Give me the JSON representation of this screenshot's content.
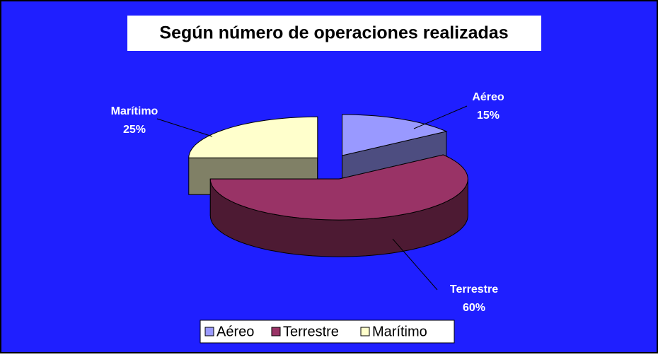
{
  "chart_data": {
    "type": "pie",
    "title": "Según número de operaciones realizadas",
    "categories": [
      "Aéreo",
      "Terrestre",
      "Marítimo"
    ],
    "values": [
      15,
      60,
      25
    ],
    "value_labels": [
      "15%",
      "60%",
      "25%"
    ],
    "colors": [
      "#9999ff",
      "#993366",
      "#ffffcc"
    ],
    "legend": "bottom"
  }
}
